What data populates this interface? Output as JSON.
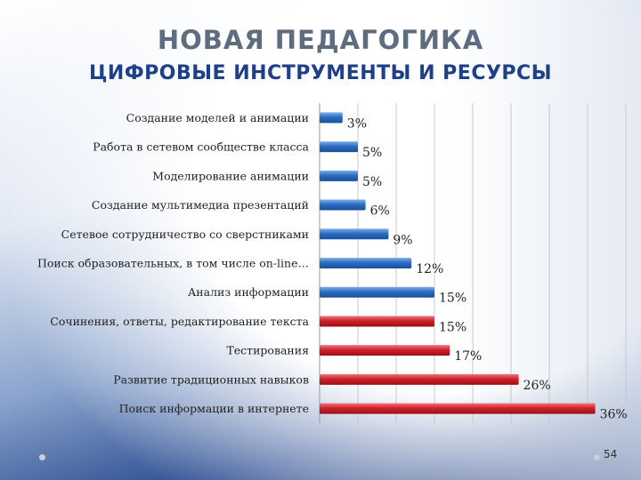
{
  "header": {
    "title": "НОВАЯ ПЕДАГОГИКА",
    "subtitle": "ЦИФРОВЫЕ ИНСТРУМЕНТЫ И РЕСУРСЫ"
  },
  "page_number": "54",
  "colors": {
    "blue": "#2b6ec2",
    "red": "#d0212a",
    "title": "#5e6c80",
    "subtitle": "#1e3f8a"
  },
  "chart_data": {
    "type": "bar",
    "orientation": "horizontal",
    "categories": [
      "Создание моделей и анимации",
      "Работа в сетевом сообществе класса",
      "Моделирование анимации",
      "Создание мультимедиа презентаций",
      "Сетевое сотрудничество со сверстниками",
      "Поиск образовательных, в том числе on-line…",
      "Анализ информации",
      "Сочинения, ответы, редактирование текста",
      "Тестирования",
      "Развитие традиционных навыков",
      "Поиск информации в интернете"
    ],
    "values": [
      3,
      5,
      5,
      6,
      9,
      12,
      15,
      15,
      17,
      26,
      36
    ],
    "value_labels": [
      "3%",
      "5%",
      "5%",
      "6%",
      "9%",
      "12%",
      "15%",
      "15%",
      "17%",
      "26%",
      "36%"
    ],
    "bar_colors": [
      "blue",
      "blue",
      "blue",
      "blue",
      "blue",
      "blue",
      "blue",
      "red",
      "red",
      "red",
      "red"
    ],
    "xlim": [
      0,
      40
    ],
    "grid": true,
    "legend": "none"
  }
}
